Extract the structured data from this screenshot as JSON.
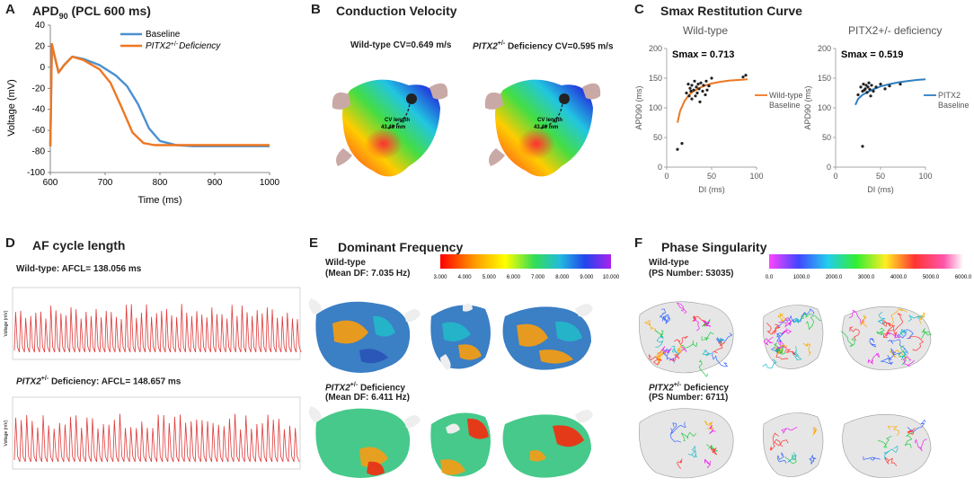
{
  "panelA": {
    "letter": "A",
    "title_main": "APD",
    "title_sub": "90",
    "title_rest": " (PCL 600 ms)",
    "ylabel": "Voltage (mV)",
    "xlabel": "Time (ms)",
    "yticks": [
      "40",
      "20",
      "0",
      "-20",
      "-40",
      "-60",
      "-80",
      "-100"
    ],
    "xticks": [
      "600",
      "700",
      "800",
      "900",
      "1000"
    ],
    "legend": [
      {
        "label": "Baseline",
        "color": "#4a90d0"
      },
      {
        "label_italic": "PITX2",
        "label_sup": "+/-",
        "label_rest": "Deficiency",
        "color": "#ee7722"
      }
    ]
  },
  "panelB": {
    "letter": "B",
    "title": "Conduction Velocity",
    "left_label": "Wild-type CV=0.649 m/s",
    "right_label_italic": "PITX2",
    "right_label_sup": "+/-",
    "right_label_rest": " Deficiency CV=0.595 m/s",
    "cv_text1": "CV length",
    "cv_text2": "43.46  mm"
  },
  "panelC": {
    "letter": "C",
    "title": "Smax Restitution Curve",
    "sub_left": "Wild-type",
    "sub_right": "PITX2+/- deficiency",
    "smax_left": "Smax  =  0.713",
    "smax_right": "Smax  =  0.519",
    "ylabel": "APD90 (ms)",
    "xlabel": "DI  (ms)",
    "yticks": [
      "200",
      "150",
      "100",
      "50",
      "0"
    ],
    "xticks": [
      "0",
      "50",
      "100"
    ],
    "legend_left": [
      "Wild-type",
      "Baseline"
    ],
    "legend_right": [
      "PITX2",
      "Baseline"
    ],
    "colors": {
      "orange": "#ee7722",
      "blue": "#2f7fc1"
    }
  },
  "chart_data": [
    {
      "type": "line",
      "title": "APD90 (PCL 600 ms)",
      "xlabel": "Time (ms)",
      "ylabel": "Voltage (mV)",
      "xlim": [
        600,
        1000
      ],
      "ylim": [
        -100,
        40
      ],
      "series": [
        {
          "name": "Baseline",
          "x": [
            600,
            603,
            608,
            615,
            625,
            640,
            660,
            690,
            720,
            740,
            760,
            780,
            800,
            830,
            860,
            900,
            1000
          ],
          "y": [
            -75,
            22,
            10,
            -5,
            2,
            10,
            8,
            2,
            -8,
            -18,
            -35,
            -58,
            -70,
            -74,
            -75,
            -75,
            -75
          ]
        },
        {
          "name": "PITX2+/- Deficiency",
          "x": [
            600,
            603,
            608,
            615,
            625,
            640,
            660,
            690,
            710,
            730,
            750,
            770,
            790,
            820,
            900,
            1000
          ],
          "y": [
            -75,
            22,
            10,
            -5,
            2,
            10,
            7,
            -2,
            -15,
            -38,
            -62,
            -72,
            -74,
            -74,
            -74,
            -74
          ]
        }
      ]
    },
    {
      "type": "scatter",
      "title": "Wild-type Smax = 0.713",
      "xlabel": "DI (ms)",
      "ylabel": "APD90 (ms)",
      "xlim": [
        0,
        100
      ],
      "ylim": [
        0,
        200
      ],
      "fit": {
        "x": [
          12,
          15,
          20,
          25,
          30,
          40,
          50,
          60,
          70,
          80,
          90
        ],
        "y": [
          75,
          95,
          112,
          122,
          128,
          136,
          141,
          144,
          146,
          147,
          148
        ]
      },
      "points": {
        "x": [
          12,
          17,
          22,
          24,
          25,
          26,
          27,
          28,
          28,
          30,
          31,
          32,
          33,
          34,
          35,
          36,
          37,
          38,
          40,
          41,
          43,
          44,
          45,
          47,
          50,
          85,
          88
        ],
        "y": [
          30,
          40,
          125,
          140,
          120,
          133,
          128,
          115,
          138,
          130,
          145,
          120,
          135,
          125,
          140,
          132,
          110,
          142,
          128,
          138,
          122,
          145,
          130,
          137,
          150,
          152,
          155
        ]
      }
    },
    {
      "type": "scatter",
      "title": "PITX2+/- deficiency Smax = 0.519",
      "xlabel": "DI (ms)",
      "ylabel": "APD90 (ms)",
      "xlim": [
        0,
        100
      ],
      "ylim": [
        0,
        200
      ],
      "fit": {
        "x": [
          22,
          25,
          30,
          40,
          50,
          60,
          70,
          80,
          90,
          100
        ],
        "y": [
          105,
          115,
          122,
          130,
          136,
          140,
          143,
          145,
          147,
          148
        ]
      },
      "points": {
        "x": [
          25,
          28,
          30,
          31,
          32,
          33,
          34,
          35,
          36,
          37,
          38,
          39,
          40,
          42,
          45,
          50,
          55,
          60,
          72,
          30
        ],
        "y": [
          122,
          135,
          128,
          140,
          130,
          132,
          138,
          126,
          135,
          142,
          131,
          120,
          138,
          128,
          135,
          140,
          132,
          137,
          140,
          35
        ]
      }
    }
  ],
  "panelD": {
    "letter": "D",
    "title": "AF cycle length",
    "wt_label": "Wild-type:  AFCL=  138.056 ms",
    "def_label_italic": "PITX2",
    "def_label_sup": "+/-",
    "def_label_rest": " Deficiency:  AFCL=  148.657 ms",
    "ylabel": "Voltage (mV)"
  },
  "panelE": {
    "letter": "E",
    "title": "Dominant Frequency",
    "wt_line1": "Wild-type",
    "wt_line2": "(Mean DF:  7.035 Hz)",
    "def_line1_italic": "PITX2",
    "def_line1_sup": "+/-",
    "def_line1_rest": " Deficiency",
    "def_line2": "(Mean DF:  6.411 Hz)",
    "scale": [
      "3.000",
      "4.000",
      "5.000",
      "6.000",
      "7.000",
      "8.000",
      "9.000",
      "10.000"
    ]
  },
  "panelF": {
    "letter": "F",
    "title": "Phase Singularity",
    "wt_line1": "Wild-type",
    "wt_line2": "(PS Number:  53035)",
    "def_line1_italic": "PITX2",
    "def_line1_sup": "+/-",
    "def_line1_rest": " Deficiency",
    "def_line2": "(PS Number:  6711)",
    "scale": [
      "0.0",
      "1000.0",
      "2000.0",
      "3000.0",
      "4000.0",
      "5000.0",
      "6000.0"
    ]
  }
}
